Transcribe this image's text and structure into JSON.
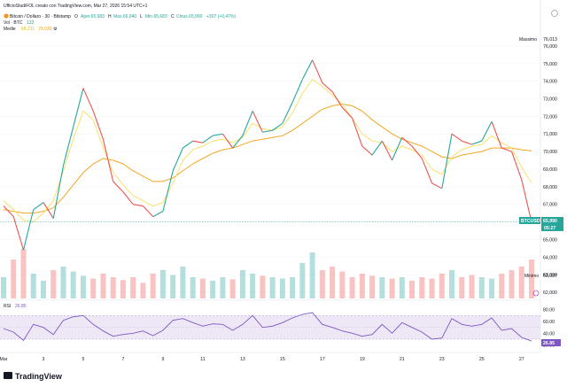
{
  "header": {
    "publisher": "UfficioStudiFOL creato con TradingView.com, Mar 27, 2026 15:54 UTC+1",
    "symbol": "Bitcoin / Dollaro · 30 · Bitstamp",
    "ohlc": {
      "o_label": "O",
      "o_value": "Aper.65,683",
      "h_label": "H",
      "h_value": "Max.66,040",
      "l_label": "L",
      "l_value": "Min.65,683",
      "c_label": "C",
      "c_value": "Chius.65,990",
      "change": "+307 (+0,47%)"
    },
    "vol_label": "Vol · BTC",
    "vol_value": "132",
    "ma_label": "Medie",
    "ma_value1": "68,211",
    "ma_value2": "70,038"
  },
  "price_axis": {
    "ticks": [
      "76,000",
      "75,000",
      "74,000",
      "73,000",
      "72,000",
      "71,000",
      "70,000",
      "69,000",
      "68,000",
      "67,000",
      "65,000",
      "64,000",
      "63,000",
      "62,000"
    ],
    "max_label": "Massimo",
    "max_value": "76,013",
    "min_label": "Minimo",
    "min_value": "63,037",
    "current_symbol": "BTCUSD",
    "current_price": "65,990",
    "countdown": "05:27"
  },
  "rsi": {
    "label": "RSI",
    "value": "26.85",
    "ticks": [
      "80.00",
      "60.00",
      "40.00",
      "20.00"
    ],
    "current_value": "26.85"
  },
  "time_axis": {
    "labels": [
      "Mar",
      "3",
      "5",
      "7",
      "9",
      "11",
      "13",
      "15",
      "17",
      "19",
      "21",
      "23",
      "25",
      "27"
    ]
  },
  "brand": {
    "name": "TradingView"
  },
  "colors": {
    "up": "#26a69a",
    "down": "#ef5350",
    "ma_fast": "#f7e26b",
    "ma_slow": "#f5a623",
    "rsi_line": "#7e57c2",
    "rsi_band": "#ede7f6",
    "current_tag": "#26a69a",
    "rsi_tag": "#7e57c2"
  },
  "chart_data": [
    {
      "type": "line",
      "title": "Bitcoin / Dollaro · 30 · Bitstamp",
      "xlabel": "",
      "ylabel": "",
      "x_range": [
        "Mar 1",
        "Mar 27"
      ],
      "ylim": [
        62000,
        76600
      ],
      "series": [
        {
          "name": "",
          "x": [
            "Mar 1",
            "Mar 1.5",
            "Mar 2",
            "Mar 2.5",
            "Mar 3",
            "Mar 3.5",
            "Mar 4",
            "Mar 4.5",
            "Mar 5",
            "Mar 5.5",
            "Mar 6",
            "Mar 6.5",
            "Mar 7",
            "Mar 7.5",
            "Mar 8",
            "Mar 8.5",
            "Mar 9",
            "Mar 9.5",
            "Mar 10",
            "Mar 10.5",
            "Mar 11",
            "Mar 11.5",
            "Mar 12",
            "Mar 12.5",
            "Mar 13",
            "Mar 13.5",
            "Mar 14",
            "Mar 14.5",
            "Mar 15",
            "Mar 15.5",
            "Mar 16",
            "Mar 16.5",
            "Mar 17",
            "Mar 17.5",
            "Mar 18",
            "Mar 18.5",
            "Mar 19",
            "Mar 19.5",
            "Mar 20",
            "Mar 20.5",
            "Mar 21",
            "Mar 21.5",
            "Mar 22",
            "Mar 22.5",
            "Mar 23",
            "Mar 23.5",
            "Mar 24",
            "Mar 24.5",
            "Mar 25",
            "Mar 25.5",
            "Mar 26",
            "Mar 26.5",
            "Mar 27",
            "Mar 27.2"
          ],
          "values": [
            66900,
            66300,
            64400,
            66700,
            67100,
            66200,
            69200,
            71400,
            73600,
            72300,
            70700,
            68300,
            67700,
            67000,
            66900,
            66300,
            66600,
            68900,
            70200,
            70600,
            70500,
            70900,
            71000,
            70200,
            70900,
            72300,
            71100,
            71200,
            71600,
            72800,
            74100,
            75200,
            73900,
            73400,
            72500,
            71900,
            70300,
            69800,
            70600,
            69500,
            70800,
            70300,
            69600,
            68200,
            67900,
            71000,
            70600,
            70400,
            70600,
            71700,
            70200,
            70000,
            68400,
            65990
          ]
        },
        {
          "name": "",
          "values": [
            67200,
            66700,
            66100,
            66000,
            66500,
            67200,
            68900,
            70700,
            72300,
            71800,
            70200,
            68800,
            68100,
            67500,
            67200,
            66900,
            67100,
            68200,
            69500,
            70100,
            70300,
            70600,
            70700,
            70500,
            70800,
            71600,
            71300,
            71200,
            71400,
            72200,
            73300,
            74100,
            73700,
            73200,
            72700,
            71900,
            71000,
            70600,
            70500,
            70000,
            70300,
            70100,
            69800,
            69000,
            68700,
            69700,
            70100,
            70300,
            70400,
            70900,
            70500,
            70200,
            69100,
            68211
          ]
        },
        {
          "name": "",
          "values": [
            66700,
            66600,
            66500,
            66500,
            66600,
            66800,
            67400,
            68100,
            68800,
            69300,
            69600,
            69500,
            69300,
            68900,
            68600,
            68300,
            68300,
            68500,
            68900,
            69300,
            69600,
            69900,
            70100,
            70200,
            70400,
            70600,
            70700,
            70800,
            70900,
            71200,
            71600,
            72000,
            72400,
            72600,
            72700,
            72600,
            72300,
            71800,
            71400,
            71000,
            70700,
            70500,
            70300,
            70000,
            69700,
            69600,
            69800,
            69900,
            70000,
            70200,
            70200,
            70200,
            70100,
            70038
          ]
        }
      ]
    },
    {
      "type": "bar",
      "title": "Vol · BTC",
      "x_range": [
        "Mar 1",
        "Mar 27"
      ],
      "ylim": [
        0,
        1
      ],
      "values": [
        0.3,
        0.55,
        0.7,
        0.35,
        0.25,
        0.4,
        0.45,
        0.38,
        0.32,
        0.28,
        0.35,
        0.3,
        0.26,
        0.3,
        0.22,
        0.35,
        0.4,
        0.33,
        0.45,
        0.3,
        0.28,
        0.25,
        0.3,
        0.27,
        0.4,
        0.35,
        0.32,
        0.3,
        0.28,
        0.3,
        0.5,
        0.65,
        0.4,
        0.45,
        0.38,
        0.3,
        0.35,
        0.32,
        0.3,
        0.28,
        0.3,
        0.25,
        0.3,
        0.28,
        0.35,
        0.4,
        0.3,
        0.33,
        0.3,
        0.28,
        0.35,
        0.4,
        0.45,
        0.55
      ]
    },
    {
      "type": "line",
      "title": "RSI",
      "x_range": [
        "Mar 1",
        "Mar 27"
      ],
      "ylim": [
        15,
        90
      ],
      "series": [
        {
          "name": "",
          "values": [
            48,
            42,
            28,
            55,
            50,
            38,
            62,
            68,
            70,
            55,
            44,
            35,
            38,
            40,
            44,
            36,
            45,
            62,
            65,
            58,
            52,
            56,
            55,
            45,
            55,
            70,
            50,
            52,
            58,
            66,
            72,
            75,
            55,
            50,
            44,
            40,
            35,
            38,
            55,
            40,
            58,
            50,
            42,
            30,
            32,
            65,
            55,
            52,
            55,
            66,
            45,
            48,
            33,
            26.85
          ]
        }
      ]
    }
  ]
}
